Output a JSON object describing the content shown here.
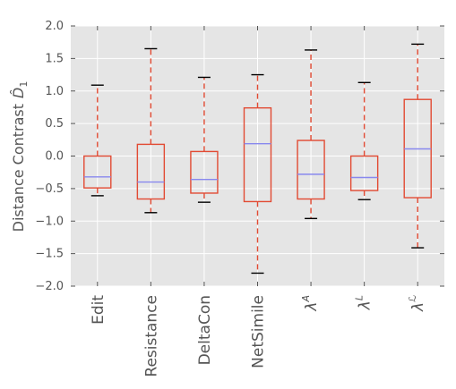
{
  "chart_data": {
    "type": "boxplot",
    "ylabel": "Distance Contrast",
    "ylabel_symbol": "D̂",
    "ylabel_subscript": "1",
    "ylim": [
      -2.0,
      2.0
    ],
    "yticks": [
      -2.0,
      -1.5,
      -1.0,
      -0.5,
      0.0,
      0.5,
      1.0,
      1.5,
      2.0
    ],
    "ytick_labels": [
      "−2.0",
      "−1.5",
      "−1.0",
      "−0.5",
      "0.0",
      "0.5",
      "1.0",
      "1.5",
      "2.0"
    ],
    "grid": true,
    "categories": [
      {
        "label": "Edit",
        "math": false
      },
      {
        "label": "Resistance",
        "math": false
      },
      {
        "label": "DeltaCon",
        "math": false
      },
      {
        "label": "NetSimile",
        "math": false
      },
      {
        "label": "λ",
        "math": true,
        "sup": "A"
      },
      {
        "label": "λ",
        "math": true,
        "sup": "L"
      },
      {
        "label": "λ",
        "math": true,
        "sup": "ℒ"
      }
    ],
    "boxes": [
      {
        "whisker_low": -0.61,
        "q1": -0.49,
        "median": -0.32,
        "q3": 0.0,
        "whisker_high": 1.09
      },
      {
        "whisker_low": -0.87,
        "q1": -0.66,
        "median": -0.4,
        "q3": 0.18,
        "whisker_high": 1.65
      },
      {
        "whisker_low": -0.71,
        "q1": -0.57,
        "median": -0.36,
        "q3": 0.07,
        "whisker_high": 1.21
      },
      {
        "whisker_low": -1.8,
        "q1": -0.7,
        "median": 0.19,
        "q3": 0.74,
        "whisker_high": 1.25
      },
      {
        "whisker_low": -0.96,
        "q1": -0.66,
        "median": -0.28,
        "q3": 0.24,
        "whisker_high": 1.63
      },
      {
        "whisker_low": -0.67,
        "q1": -0.53,
        "median": -0.33,
        "q3": 0.0,
        "whisker_high": 1.13
      },
      {
        "whisker_low": -1.41,
        "q1": -0.64,
        "median": 0.11,
        "q3": 0.87,
        "whisker_high": 1.72
      }
    ],
    "colors": {
      "background": "#e5e5e5",
      "grid": "#ffffff",
      "box": "#e24a33",
      "median": "#8888ee",
      "cap": "#000000",
      "tick": "#555555"
    }
  }
}
